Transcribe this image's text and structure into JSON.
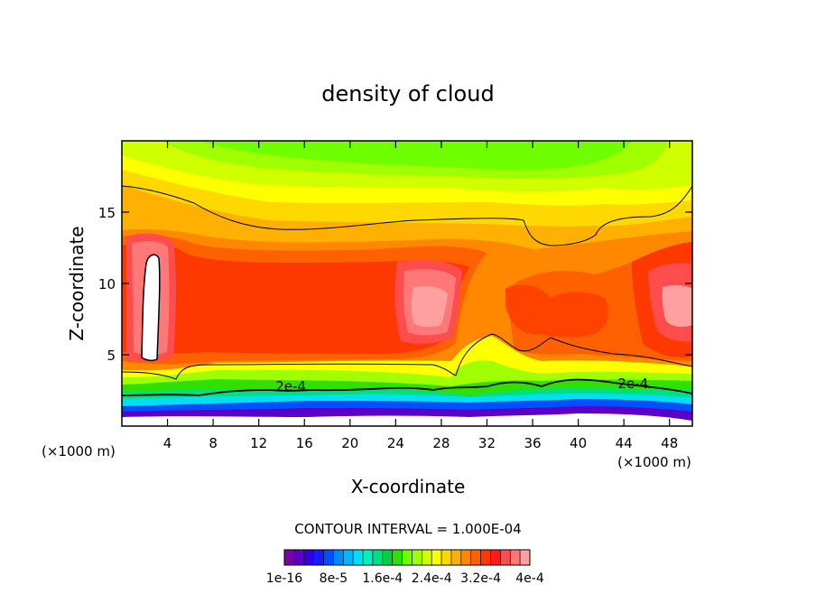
{
  "chart_data": {
    "type": "heatmap",
    "title": "density of cloud",
    "xlabel": "X-coordinate",
    "ylabel": "Z-coordinate",
    "x_unit_left": "(×1000 m)",
    "x_unit_right": "(×1000 m)",
    "xlim": [
      0,
      50
    ],
    "ylim": [
      0,
      20
    ],
    "x_ticks": [
      4,
      8,
      12,
      16,
      20,
      24,
      28,
      32,
      36,
      40,
      44,
      48
    ],
    "y_ticks": [
      5,
      10,
      15
    ],
    "grid": false,
    "contour_interval_label": "CONTOUR INTERVAL = 1.000E-04",
    "contour_labels": [
      {
        "text": "2e-4",
        "x": 14.8,
        "y": 2.6
      },
      {
        "text": "2e-4",
        "x": 44.8,
        "y": 2.8
      }
    ],
    "colorbar": {
      "tick_labels": [
        "1e-16",
        "8e-5",
        "1.6e-4",
        "2.4e-4",
        "3.2e-4",
        "4e-4"
      ],
      "colors": [
        "#7a00a8",
        "#5a00c8",
        "#3200e0",
        "#1a1aff",
        "#0050ff",
        "#0088ff",
        "#00b8ff",
        "#00e0f0",
        "#00f0c0",
        "#00e080",
        "#00d040",
        "#30e000",
        "#70ff00",
        "#a0ff00",
        "#d0ff00",
        "#ffff00",
        "#ffd800",
        "#ffb000",
        "#ff8800",
        "#ff6000",
        "#ff3800",
        "#ff1a1a",
        "#ff4c4c",
        "#ff7878",
        "#ffa0a0"
      ]
    }
  }
}
